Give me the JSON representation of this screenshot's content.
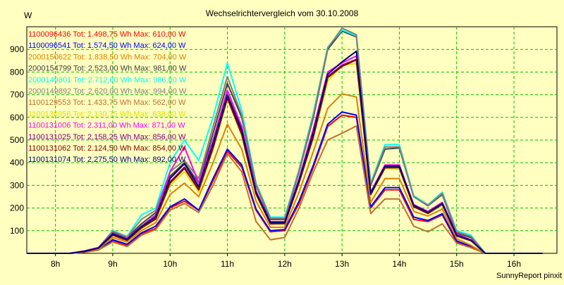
{
  "chart_data": {
    "type": "line",
    "title": "Wechselrichtervergleich vom 30.10.2008",
    "ylabel": "W",
    "footer": "SunnyReport pinxit",
    "x_ticks": [
      "8h",
      "9h",
      "10h",
      "11h",
      "12h",
      "13h",
      "14h",
      "15h",
      "16h"
    ],
    "y_ticks": [
      100,
      200,
      300,
      400,
      500,
      600,
      700,
      800,
      900
    ],
    "ylim": [
      0,
      1000
    ],
    "xlim_hours": [
      7.5,
      16.75
    ],
    "grid": true,
    "legend_position": "top-left",
    "x": [
      7.5,
      7.75,
      8.0,
      8.25,
      8.5,
      8.75,
      9.0,
      9.25,
      9.5,
      9.75,
      10.0,
      10.25,
      10.5,
      10.75,
      11.0,
      11.25,
      11.5,
      11.75,
      12.0,
      12.25,
      12.5,
      12.75,
      13.0,
      13.25,
      13.5,
      13.75,
      14.0,
      14.25,
      14.5,
      14.75,
      15.0,
      15.25,
      15.5,
      15.75,
      16.0,
      16.25,
      16.5
    ],
    "series": [
      {
        "name": "1100096436 Tot: 1.498,75 Wh Max: 610,00 W",
        "color": "#ff0000",
        "values": [
          0,
          0,
          0,
          0,
          5,
          15,
          55,
          35,
          85,
          110,
          200,
          230,
          190,
          320,
          450,
          380,
          190,
          95,
          100,
          220,
          380,
          560,
          610,
          600,
          200,
          280,
          280,
          150,
          140,
          170,
          50,
          25,
          0,
          0,
          0,
          0,
          0
        ]
      },
      {
        "name": "1100096541 Tot: 1.574,50 Wh Max: 624,00 W",
        "color": "#0000ff",
        "values": [
          0,
          0,
          0,
          0,
          5,
          15,
          60,
          40,
          90,
          120,
          205,
          240,
          190,
          330,
          460,
          390,
          195,
          100,
          105,
          230,
          390,
          570,
          624,
          610,
          205,
          290,
          290,
          160,
          145,
          175,
          55,
          30,
          0,
          0,
          0,
          0,
          0
        ]
      },
      {
        "name": "2000150622 Tot: 1.838,50 Wh Max: 704,00 W",
        "color": "#e08000",
        "values": [
          0,
          0,
          0,
          0,
          5,
          20,
          70,
          50,
          100,
          135,
          260,
          310,
          250,
          400,
          570,
          460,
          230,
          115,
          115,
          270,
          450,
          640,
          704,
          690,
          225,
          330,
          330,
          185,
          165,
          195,
          65,
          35,
          0,
          0,
          0,
          0,
          0
        ]
      },
      {
        "name": "2000154799 Tot: 2.523,00 Wh Max: 981,00 W",
        "color": "#404040",
        "values": [
          0,
          0,
          0,
          0,
          10,
          25,
          95,
          70,
          130,
          180,
          340,
          400,
          310,
          530,
          750,
          600,
          300,
          150,
          150,
          360,
          600,
          900,
          981,
          955,
          300,
          460,
          465,
          250,
          210,
          260,
          90,
          70,
          0,
          0,
          0,
          0,
          0
        ]
      },
      {
        "name": "2000149801 Tot: 2.712,00 Wh Max: 986,00 W",
        "color": "#00ffff",
        "values": [
          0,
          0,
          0,
          0,
          10,
          25,
          100,
          75,
          170,
          200,
          400,
          500,
          410,
          600,
          840,
          630,
          310,
          160,
          160,
          370,
          620,
          910,
          986,
          960,
          310,
          480,
          480,
          255,
          215,
          270,
          100,
          80,
          0,
          0,
          0,
          0,
          0
        ]
      },
      {
        "name": "2000149892 Tot: 2.620,00 Wh Max: 994,00 W",
        "color": "#808080",
        "values": [
          0,
          0,
          0,
          0,
          10,
          25,
          98,
          72,
          150,
          190,
          360,
          410,
          330,
          560,
          780,
          610,
          305,
          155,
          155,
          365,
          610,
          905,
          994,
          965,
          305,
          470,
          470,
          250,
          212,
          265,
          95,
          75,
          0,
          0,
          0,
          0,
          0
        ]
      },
      {
        "name": "1100129553 Tot: 1.433,75 Wh Max: 562,00 W",
        "color": "#c07030",
        "values": [
          0,
          0,
          0,
          0,
          5,
          15,
          50,
          30,
          80,
          105,
          190,
          220,
          180,
          300,
          440,
          360,
          140,
          60,
          70,
          200,
          360,
          500,
          530,
          562,
          175,
          240,
          240,
          120,
          95,
          130,
          45,
          25,
          0,
          0,
          0,
          0,
          0
        ]
      },
      {
        "name": "1100130956 Tot: 2.130,75 Wh Max: 838,00 W",
        "color": "#e0e000",
        "values": [
          0,
          0,
          0,
          0,
          8,
          20,
          80,
          55,
          110,
          150,
          300,
          360,
          270,
          460,
          680,
          520,
          260,
          130,
          130,
          310,
          510,
          760,
          830,
          838,
          255,
          375,
          370,
          205,
          175,
          215,
          75,
          55,
          0,
          0,
          0,
          0,
          0
        ]
      },
      {
        "name": "1100131006 Tot: 2.311,00 Wh Max: 871,00 W",
        "color": "#ff00ff",
        "values": [
          0,
          0,
          0,
          0,
          10,
          25,
          88,
          65,
          120,
          170,
          360,
          470,
          310,
          500,
          720,
          560,
          275,
          140,
          140,
          330,
          550,
          800,
          840,
          871,
          270,
          390,
          390,
          215,
          185,
          225,
          85,
          60,
          0,
          0,
          0,
          0,
          0
        ]
      },
      {
        "name": "1100131025 Tot: 2.158,25 Wh Max: 856,00 W",
        "color": "#800080",
        "values": [
          0,
          0,
          0,
          0,
          8,
          22,
          82,
          58,
          115,
          155,
          315,
          380,
          285,
          470,
          690,
          530,
          265,
          132,
          133,
          315,
          520,
          780,
          830,
          856,
          262,
          380,
          380,
          208,
          178,
          218,
          78,
          57,
          0,
          0,
          0,
          0,
          0
        ]
      },
      {
        "name": "1100131062 Tot: 2.124,50 Wh Max: 854,00 W",
        "color": "#800000",
        "values": [
          0,
          0,
          0,
          0,
          8,
          22,
          80,
          57,
          112,
          152,
          310,
          375,
          280,
          465,
          685,
          525,
          262,
          130,
          131,
          312,
          515,
          775,
          825,
          854,
          260,
          378,
          378,
          206,
          176,
          216,
          77,
          56,
          0,
          0,
          0,
          0,
          0
        ]
      },
      {
        "name": "1100131074 Tot: 2.275,50 Wh Max: 892,00 W",
        "color": "#000080",
        "values": [
          0,
          0,
          0,
          0,
          9,
          24,
          86,
          62,
          118,
          162,
          330,
          395,
          295,
          485,
          700,
          545,
          270,
          137,
          137,
          322,
          535,
          790,
          845,
          892,
          266,
          385,
          385,
          212,
          181,
          221,
          80,
          58,
          0,
          0,
          0,
          0,
          0
        ]
      }
    ]
  }
}
